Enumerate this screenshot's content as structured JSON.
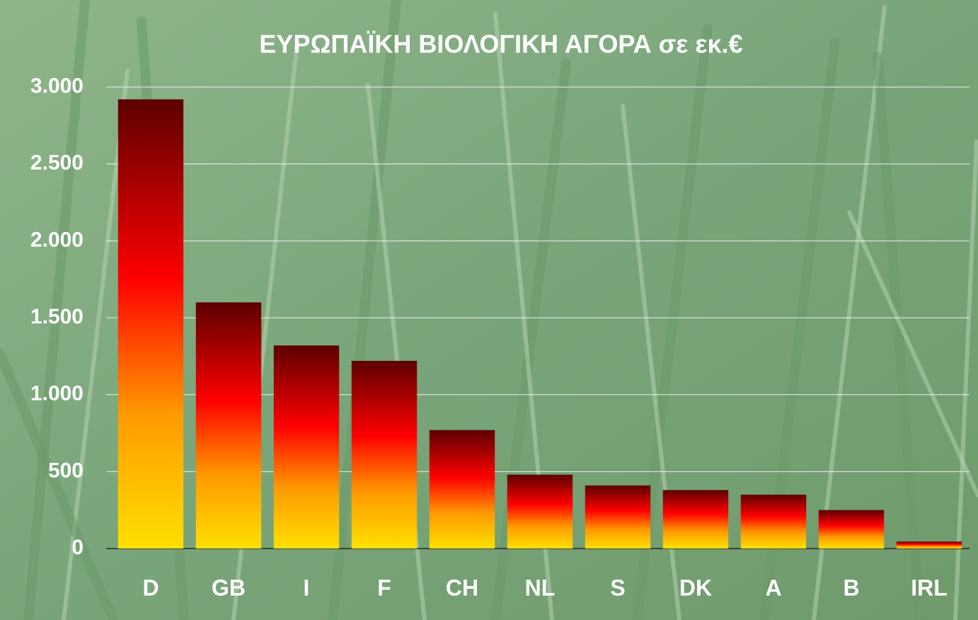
{
  "chart_data": {
    "type": "bar",
    "title": "ΕΥΡΩΠΑΪΚΗ ΒΙΟΛΟΓΙΚΗ ΑΓΟΡΑ σε εκ.€",
    "categories": [
      "D",
      "GB",
      "I",
      "F",
      "CH",
      "NL",
      "S",
      "DK",
      "A",
      "B",
      "IRL"
    ],
    "values": [
      2920,
      1600,
      1320,
      1220,
      770,
      480,
      410,
      380,
      350,
      250,
      45
    ],
    "gradient": [
      "#5c0000",
      "#ff0000",
      "#ff9900",
      "#ffe000"
    ],
    "ylim": [
      0,
      3000
    ],
    "yticks": [
      0,
      500,
      {
        "value": 1000,
        "label": "1.000"
      },
      {
        "value": 1500,
        "label": "1.500"
      },
      {
        "value": 2000,
        "label": "2.000"
      },
      {
        "value": 2500,
        "label": "2.500"
      },
      {
        "value": 3000,
        "label": "3.000"
      }
    ],
    "grid": true
  }
}
